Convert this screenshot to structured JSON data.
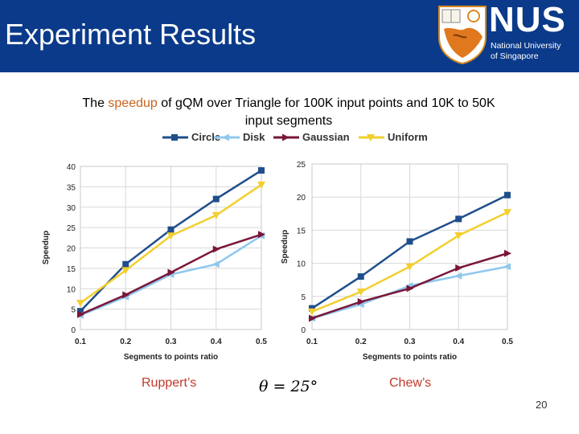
{
  "header": {
    "title": "Experiment Results",
    "logo_text": "NUS",
    "logo_sub_1": "National University",
    "logo_sub_2": "of Singapore",
    "bg_color": "#0b3a8a"
  },
  "subtitle": {
    "pre": "The ",
    "highlight": "speedup",
    "post": " of gQM over Triangle for 100K input points and 10K to 50K input segments"
  },
  "legend": [
    {
      "name": "Circle",
      "color": "#1f4e8c",
      "marker": "square"
    },
    {
      "name": "Disk",
      "color": "#8ec8ee",
      "marker": "triangle-left"
    },
    {
      "name": "Gaussian",
      "color": "#7a1638",
      "marker": "triangle-right"
    },
    {
      "name": "Uniform",
      "color": "#f2cf2e",
      "marker": "triangle-down"
    }
  ],
  "chart_data": [
    {
      "type": "line",
      "xlabel": "Segments to points ratio",
      "ylabel": "Speedup",
      "x": [
        0.1,
        0.2,
        0.3,
        0.4,
        0.5
      ],
      "x_ticks": [
        "0.1",
        "0.2",
        "0.3",
        "0.4",
        "0.5"
      ],
      "ylim": [
        0,
        40
      ],
      "y_ticks": [
        0,
        5,
        10,
        15,
        20,
        25,
        30,
        35,
        40
      ],
      "grid": true,
      "series": [
        {
          "name": "Circle",
          "values": [
            4.5,
            16,
            24.5,
            32,
            39
          ]
        },
        {
          "name": "Disk",
          "values": [
            3.5,
            8,
            13.5,
            16,
            23
          ]
        },
        {
          "name": "Gaussian",
          "values": [
            3.7,
            8.5,
            14,
            19.7,
            23.3
          ]
        },
        {
          "name": "Uniform",
          "values": [
            6.5,
            14.5,
            23,
            28,
            35.5
          ]
        }
      ],
      "caption": "Ruppert’s"
    },
    {
      "type": "line",
      "xlabel": "Segments to points ratio",
      "ylabel": "Speedup",
      "x": [
        0.1,
        0.2,
        0.3,
        0.4,
        0.5
      ],
      "x_ticks": [
        "0.1",
        "0.2",
        "0.3",
        "0.4",
        "0.5"
      ],
      "ylim": [
        0,
        25
      ],
      "y_ticks": [
        0,
        5,
        10,
        15,
        20,
        25
      ],
      "grid": true,
      "series": [
        {
          "name": "Circle",
          "values": [
            3.2,
            8,
            13.3,
            16.7,
            20.3
          ]
        },
        {
          "name": "Disk",
          "values": [
            1.7,
            3.8,
            6.6,
            8.1,
            9.5
          ]
        },
        {
          "name": "Gaussian",
          "values": [
            1.7,
            4.2,
            6.2,
            9.3,
            11.5
          ]
        },
        {
          "name": "Uniform",
          "values": [
            2.7,
            5.7,
            9.5,
            14.2,
            17.7
          ]
        }
      ],
      "caption": "Chew’s"
    }
  ],
  "theta_label": "θ = 25°",
  "page_number": "20"
}
